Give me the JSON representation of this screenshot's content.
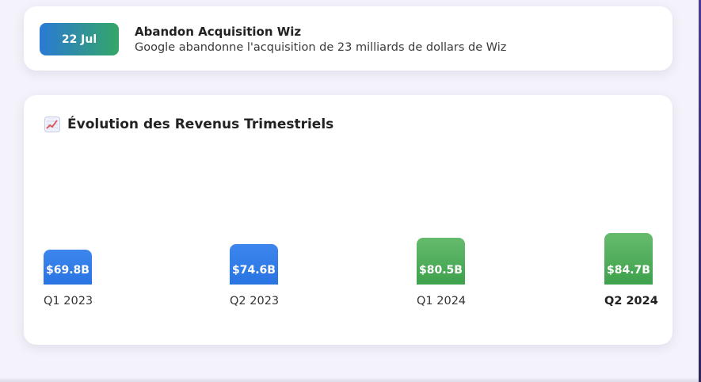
{
  "event": {
    "date": "22 Jul",
    "title": "Abandon Acquisition Wiz",
    "description": "Google abandonne l'acquisition de 23 milliards de dollars de Wiz"
  },
  "chart": {
    "icon": "chart-increasing-icon",
    "title": "Évolution des Revenus Trimestriels"
  },
  "colors": {
    "blue": "#2f7de8",
    "green": "#4caf50"
  },
  "chart_data": {
    "type": "bar",
    "title": "Évolution des Revenus Trimestriels",
    "categories": [
      "Q1 2023",
      "Q2 2023",
      "Q1 2024",
      "Q2 2024"
    ],
    "values": [
      69.8,
      74.6,
      80.5,
      84.7
    ],
    "value_labels": [
      "$69.8B",
      "$74.6B",
      "$80.5B",
      "$84.7B"
    ],
    "bar_colors": [
      "blue",
      "blue",
      "green",
      "green"
    ],
    "highlighted_category": "Q2 2024",
    "xlabel": "",
    "ylabel": ""
  }
}
